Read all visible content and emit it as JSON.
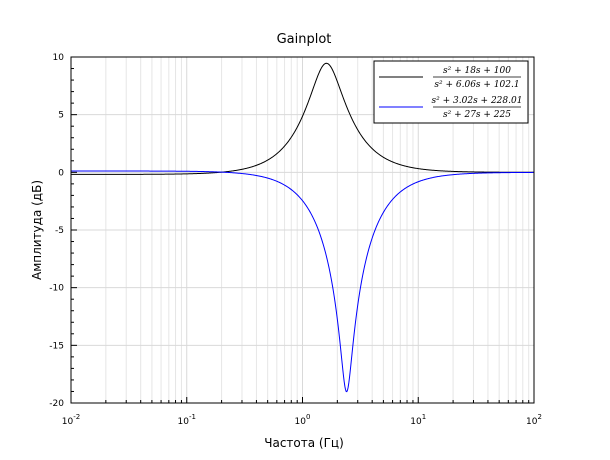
{
  "chart_data": {
    "type": "line",
    "title": "Gainplot",
    "xlabel": "Частота (Гц)",
    "ylabel": "Амплитуда (дБ)",
    "xscale": "log",
    "xlim": [
      0.01,
      100
    ],
    "ylim": [
      -20,
      10
    ],
    "grid": true,
    "legend_position": "top-right",
    "x_ticks": [
      {
        "value": 0.01,
        "base": "10",
        "exp": "-2"
      },
      {
        "value": 0.1,
        "base": "10",
        "exp": "-1"
      },
      {
        "value": 1,
        "base": "10",
        "exp": "0"
      },
      {
        "value": 10,
        "base": "10",
        "exp": "1"
      },
      {
        "value": 100,
        "base": "10",
        "exp": "2"
      }
    ],
    "y_ticks": [
      10,
      5,
      0,
      -5,
      -10,
      -15,
      -20
    ],
    "series": [
      {
        "name": "(s^2 + 18s + 100) / (s^2 + 6.06s + 102.1)",
        "legend_num": "s² + 18s + 100",
        "legend_den": "s² + 6.06s + 102.1",
        "color": "#000000",
        "num": [
          1,
          18,
          100
        ],
        "den": [
          1,
          6.06,
          102.1
        ]
      },
      {
        "name": "(s^2 + 3.02s + 228.01) / (s^2 + 27s + 225)",
        "legend_num": "s² + 3.02s + 228.01",
        "legend_den": "s² + 27s + 225",
        "color": "#0000ff",
        "num": [
          1,
          3.02,
          228.01
        ],
        "den": [
          1,
          27,
          225
        ]
      }
    ]
  }
}
